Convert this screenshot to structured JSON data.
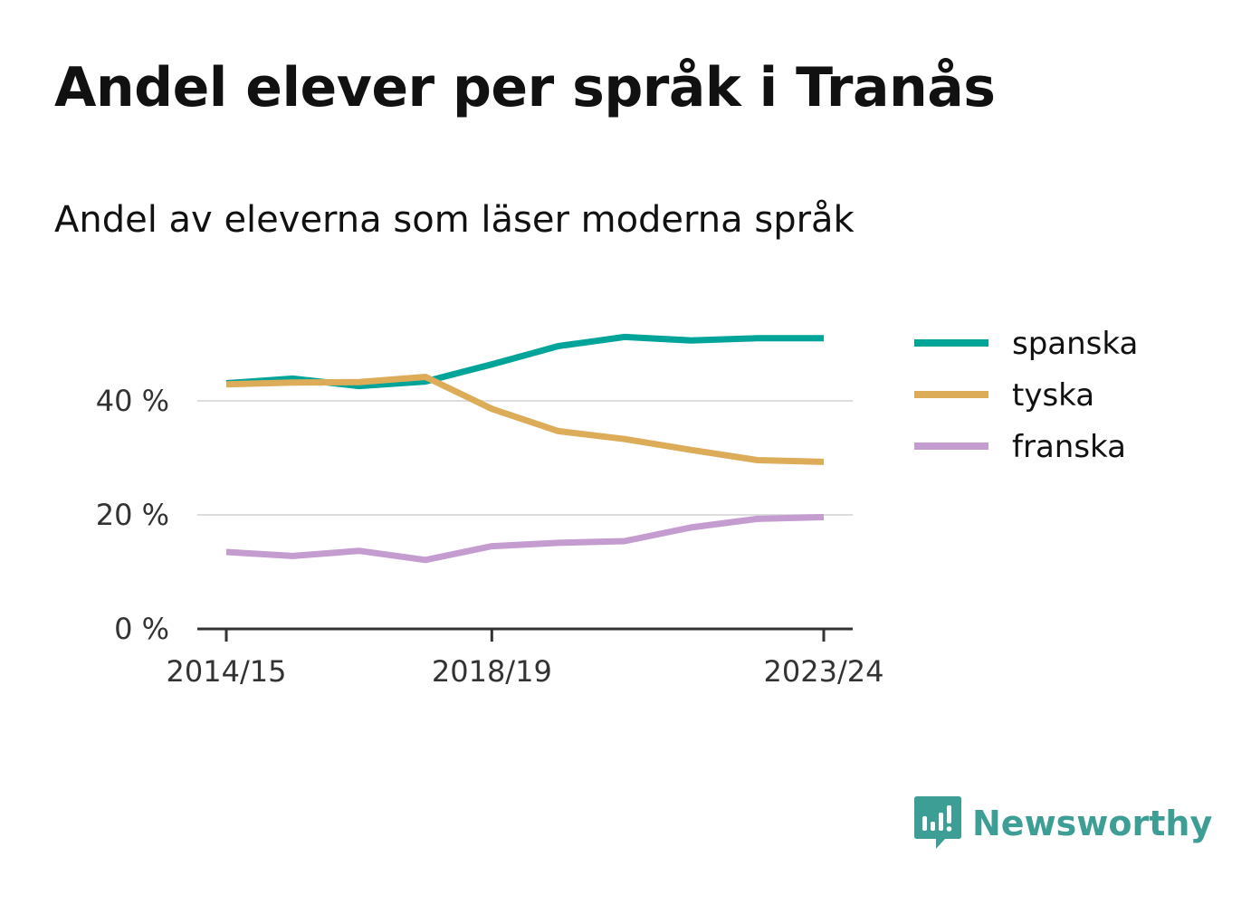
{
  "title": "Andel elever per språk i Tranås",
  "subtitle": "Andel av eleverna som läser moderna språk",
  "brand": {
    "name": "Newsworthy",
    "color": "#3d9e95"
  },
  "chart_data": {
    "type": "line",
    "x": [
      "2014/15",
      "2015/16",
      "2016/17",
      "2017/18",
      "2018/19",
      "2019/20",
      "2020/21",
      "2021/22",
      "2022/23",
      "2023/24"
    ],
    "x_tick_labels": [
      "2014/15",
      "2018/19",
      "2023/24"
    ],
    "y_tick_labels": [
      "0 %",
      "20 %",
      "40 %"
    ],
    "ylim": [
      0,
      55
    ],
    "grid": true,
    "legend": "right",
    "series": [
      {
        "name": "spanska",
        "color": "#00a498",
        "values": [
          43.1,
          43.9,
          42.6,
          43.4,
          46.4,
          49.6,
          51.2,
          50.6,
          51.0,
          51.0
        ]
      },
      {
        "name": "tyska",
        "color": "#dcac58",
        "values": [
          42.9,
          43.2,
          43.3,
          44.2,
          38.6,
          34.7,
          33.3,
          31.4,
          29.6,
          29.3
        ]
      },
      {
        "name": "franska",
        "color": "#c49ccf",
        "values": [
          13.5,
          12.8,
          13.7,
          12.1,
          14.5,
          15.1,
          15.4,
          17.8,
          19.3,
          19.6
        ]
      }
    ]
  }
}
